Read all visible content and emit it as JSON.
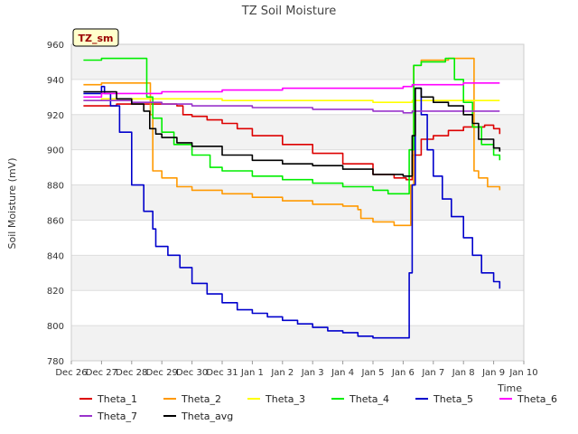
{
  "chart_data": {
    "type": "line",
    "title": "TZ Soil Moisture",
    "xlabel": "Time",
    "ylabel": "Soil Moisture (mV)",
    "badge": "TZ_sm",
    "ylim": [
      780,
      960
    ],
    "yticks": [
      780,
      800,
      820,
      840,
      860,
      880,
      900,
      920,
      940,
      960
    ],
    "xlim": [
      0,
      15
    ],
    "xticks": [
      {
        "v": 0,
        "label": "Dec 26"
      },
      {
        "v": 1,
        "label": "Dec 27"
      },
      {
        "v": 2,
        "label": "Dec 28"
      },
      {
        "v": 3,
        "label": "Dec 29"
      },
      {
        "v": 4,
        "label": "Dec 30"
      },
      {
        "v": 5,
        "label": "Dec 31"
      },
      {
        "v": 6,
        "label": "Jan 1"
      },
      {
        "v": 7,
        "label": "Jan 2"
      },
      {
        "v": 8,
        "label": "Jan 3"
      },
      {
        "v": 9,
        "label": "Jan 4"
      },
      {
        "v": 10,
        "label": "Jan 5"
      },
      {
        "v": 11,
        "label": "Jan 6"
      },
      {
        "v": 12,
        "label": "Jan 7"
      },
      {
        "v": 13,
        "label": "Jan 8"
      },
      {
        "v": 14,
        "label": "Jan 9"
      },
      {
        "v": 15,
        "label": "Jan 10"
      }
    ],
    "series": [
      {
        "name": "Theta_1",
        "color": "#dd0000",
        "x": [
          0.4,
          1.2,
          1.5,
          2.0,
          2.4,
          3.5,
          3.7,
          4.0,
          4.5,
          5.0,
          5.5,
          6.0,
          7.0,
          8.0,
          9.0,
          10.0,
          10.7,
          11.1,
          11.3,
          11.6,
          12.0,
          12.5,
          13.0,
          13.3,
          13.7,
          14.0,
          14.2
        ],
        "y": [
          925,
          925,
          926,
          926,
          926,
          925,
          920,
          919,
          917,
          915,
          912,
          908,
          903,
          898,
          892,
          886,
          884,
          883,
          897,
          906,
          908,
          911,
          913,
          913,
          914,
          912,
          909
        ]
      },
      {
        "name": "Theta_2",
        "color": "#ff9900",
        "x": [
          0.4,
          1.0,
          2.0,
          2.55,
          2.62,
          2.7,
          3.0,
          3.5,
          4.0,
          5.0,
          6.0,
          7.0,
          8.0,
          9.0,
          9.5,
          9.6,
          10.0,
          10.7,
          11.1,
          11.25,
          11.35,
          11.6,
          12.0,
          12.5,
          13.0,
          13.3,
          13.35,
          13.5,
          13.8,
          14.2
        ],
        "y": [
          937,
          938,
          938,
          938,
          920,
          888,
          884,
          879,
          877,
          875,
          873,
          871,
          869,
          868,
          866,
          861,
          859,
          857,
          857,
          880,
          948,
          951,
          951,
          952,
          952,
          952,
          888,
          884,
          879,
          877
        ]
      },
      {
        "name": "Theta_3",
        "color": "#ffff00",
        "x": [
          0.4,
          1.0,
          2.0,
          3.0,
          4.0,
          5.0,
          6.0,
          7.0,
          8.0,
          9.0,
          10.0,
          11.0,
          11.3,
          12.0,
          13.0,
          13.5,
          14.2
        ],
        "y": [
          928,
          929,
          929,
          929,
          929,
          928,
          928,
          928,
          928,
          928,
          927,
          927,
          928,
          928,
          928,
          928,
          928
        ]
      },
      {
        "name": "Theta_4",
        "color": "#00ee00",
        "x": [
          0.4,
          1.0,
          2.0,
          2.3,
          2.5,
          2.7,
          3.0,
          3.4,
          4.0,
          4.6,
          5.0,
          6.0,
          7.0,
          8.0,
          9.0,
          10.0,
          10.5,
          11.1,
          11.2,
          11.35,
          11.6,
          12.0,
          12.4,
          12.7,
          13.0,
          13.3,
          13.6,
          14.0,
          14.2
        ],
        "y": [
          951,
          952,
          952,
          952,
          930,
          918,
          910,
          903,
          897,
          890,
          888,
          885,
          883,
          881,
          879,
          877,
          875,
          875,
          900,
          948,
          950,
          950,
          952,
          940,
          927,
          913,
          903,
          897,
          894
        ]
      },
      {
        "name": "Theta_5",
        "color": "#0000cc",
        "x": [
          0.4,
          1.0,
          1.1,
          1.3,
          1.6,
          2.0,
          2.4,
          2.7,
          2.8,
          3.2,
          3.6,
          4.0,
          4.5,
          5.0,
          5.5,
          6.0,
          6.5,
          7.0,
          7.5,
          8.0,
          8.5,
          9.0,
          9.5,
          10.0,
          10.5,
          11.0,
          11.2,
          11.3,
          11.4,
          11.6,
          11.8,
          12.0,
          12.3,
          12.6,
          13.0,
          13.3,
          13.6,
          14.0,
          14.2
        ],
        "y": [
          932,
          936,
          932,
          925,
          910,
          880,
          865,
          855,
          845,
          840,
          833,
          824,
          818,
          813,
          809,
          807,
          805,
          803,
          801,
          799,
          797,
          796,
          794,
          793,
          793,
          793,
          830,
          880,
          935,
          920,
          900,
          885,
          872,
          862,
          850,
          840,
          830,
          825,
          821
        ]
      },
      {
        "name": "Theta_6",
        "color": "#ff00ff",
        "x": [
          0.4,
          1.0,
          2.0,
          3.0,
          4.0,
          5.0,
          6.0,
          7.0,
          8.0,
          9.0,
          10.0,
          11.0,
          11.3,
          12.0,
          13.0,
          14.2
        ],
        "y": [
          930,
          932,
          932,
          933,
          933,
          934,
          934,
          935,
          935,
          935,
          935,
          936,
          937,
          937,
          938,
          938
        ]
      },
      {
        "name": "Theta_7",
        "color": "#9933cc",
        "x": [
          0.4,
          1.0,
          2.0,
          3.0,
          4.0,
          5.0,
          6.0,
          7.0,
          8.0,
          9.0,
          10.0,
          11.0,
          11.3,
          12.0,
          13.0,
          14.2
        ],
        "y": [
          928,
          928,
          927,
          926,
          925,
          925,
          924,
          924,
          923,
          923,
          922,
          921,
          922,
          922,
          922,
          922
        ]
      },
      {
        "name": "Theta_avg",
        "color": "#000000",
        "x": [
          0.4,
          1.0,
          1.5,
          2.0,
          2.4,
          2.6,
          2.8,
          3.0,
          3.5,
          4.0,
          5.0,
          6.0,
          7.0,
          8.0,
          9.0,
          10.0,
          11.0,
          11.15,
          11.3,
          11.4,
          11.6,
          12.0,
          12.5,
          13.0,
          13.3,
          13.5,
          14.0,
          14.2
        ],
        "y": [
          933,
          933,
          929,
          926,
          922,
          912,
          909,
          907,
          904,
          902,
          897,
          894,
          892,
          891,
          889,
          886,
          885,
          885,
          908,
          935,
          930,
          927,
          925,
          920,
          915,
          906,
          901,
          899
        ]
      }
    ],
    "legend_position": "bottom"
  }
}
